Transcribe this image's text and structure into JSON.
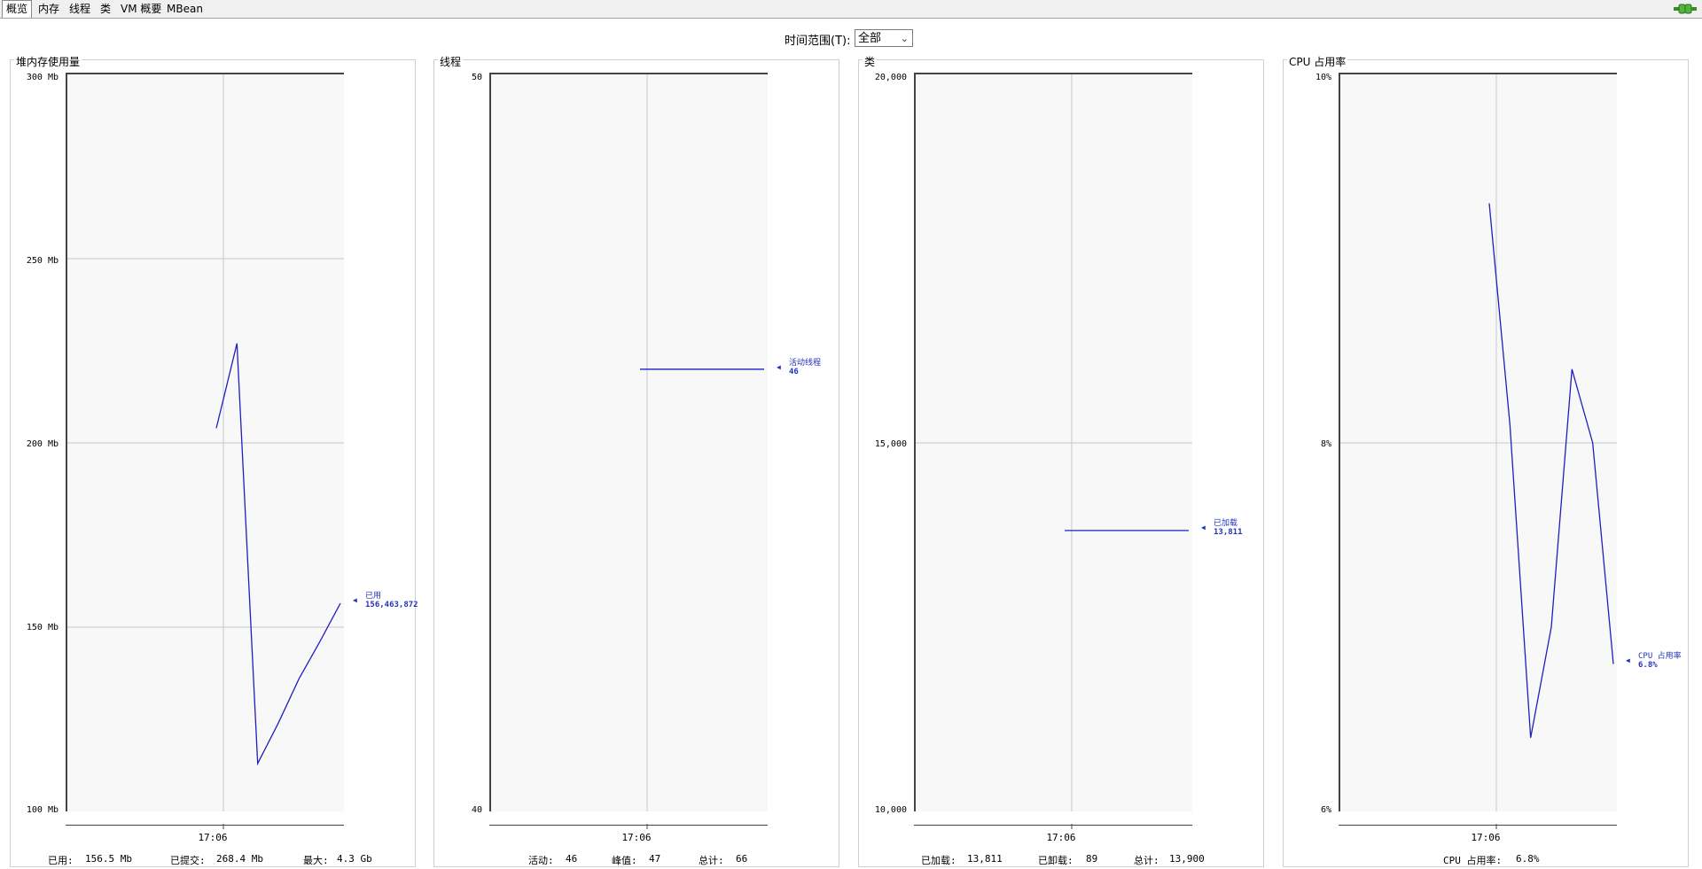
{
  "tabs": [
    "概览",
    "内存",
    "线程",
    "类",
    "VM 概要",
    "MBean"
  ],
  "active_tab": "概览",
  "time_range": {
    "label": "时间范围(T):",
    "selected": "全部"
  },
  "colors": {
    "series": "#1f1fbf",
    "grid": "#c8c8c8",
    "plot_bg": "#f8f8f8"
  },
  "panels": {
    "heap": {
      "title": "堆内存使用量",
      "y_ticks": [
        "300 Mb",
        "250 Mb",
        "200 Mb",
        "150 Mb",
        "100 Mb"
      ],
      "x_tick": "17:06",
      "marker_label": "已用",
      "marker_value": "156,463,872",
      "stats": {
        "used_label": "已用:",
        "used_value": "156.5  Mb",
        "committed_label": "已提交:",
        "committed_value": "268.4  Mb",
        "max_label": "最大:",
        "max_value": "4.3  Gb"
      }
    },
    "threads": {
      "title": "线程",
      "y_ticks": [
        "50",
        "40"
      ],
      "x_tick": "17:06",
      "marker_label": "活动线程",
      "marker_value": "46",
      "stats": {
        "live_label": "活动:",
        "live_value": "46",
        "peak_label": "峰值:",
        "peak_value": "47",
        "total_label": "总计:",
        "total_value": "66"
      }
    },
    "classes": {
      "title": "类",
      "y_ticks": [
        "20,000",
        "15,000",
        "10,000"
      ],
      "x_tick": "17:06",
      "marker_label": "已加载",
      "marker_value": "13,811",
      "stats": {
        "loaded_label": "已加载:",
        "loaded_value": "13,811",
        "unloaded_label": "已卸载:",
        "unloaded_value": "89",
        "total_label": "总计:",
        "total_value": "13,900"
      }
    },
    "cpu": {
      "title": "CPU 占用率",
      "y_ticks": [
        "10%",
        "8%",
        "6%"
      ],
      "x_tick": "17:06",
      "marker_label": "CPU 占用率",
      "marker_value": "6.8%",
      "stats": {
        "cpu_label": "CPU 占用率:",
        "cpu_value": "6.8%"
      }
    }
  },
  "chart_data": [
    {
      "type": "line",
      "title": "堆内存使用量",
      "ylabel": "Mb",
      "ylim": [
        100,
        300
      ],
      "series": [
        {
          "name": "已用",
          "x": [
            0,
            1,
            2,
            3,
            4,
            5,
            6
          ],
          "values": [
            204,
            227,
            113,
            124,
            136,
            146,
            156.5
          ]
        }
      ]
    },
    {
      "type": "line",
      "title": "线程",
      "ylim": [
        40,
        50
      ],
      "series": [
        {
          "name": "活动线程",
          "x": [
            0,
            6
          ],
          "values": [
            46,
            46
          ]
        }
      ]
    },
    {
      "type": "line",
      "title": "类",
      "ylim": [
        10000,
        20000
      ],
      "series": [
        {
          "name": "已加载",
          "x": [
            0,
            6
          ],
          "values": [
            13811,
            13811
          ]
        }
      ]
    },
    {
      "type": "line",
      "title": "CPU 占用率",
      "ylabel": "%",
      "ylim": [
        6,
        10
      ],
      "series": [
        {
          "name": "CPU 占用率",
          "x": [
            0,
            1,
            2,
            3,
            4,
            5,
            6
          ],
          "values": [
            9.3,
            8.1,
            6.4,
            7.0,
            8.4,
            8.0,
            6.8
          ]
        }
      ]
    }
  ]
}
